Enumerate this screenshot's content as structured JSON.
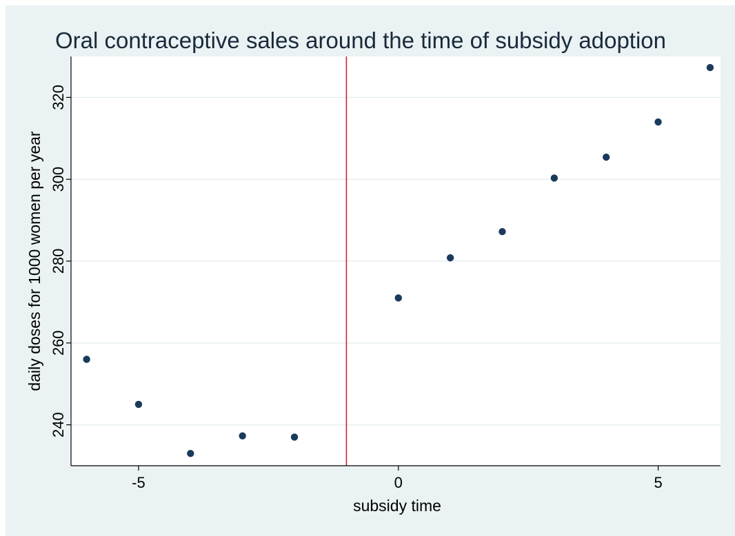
{
  "chart_data": {
    "type": "scatter",
    "title": "Oral contraceptive sales around the time of subsidy adoption",
    "xlabel": "subsidy time",
    "ylabel": "daily doses for 1000 women per year",
    "xlim": [
      -6.3,
      6.2
    ],
    "ylim": [
      230,
      330
    ],
    "xticks": [
      -5,
      0,
      5
    ],
    "yticks": [
      240,
      260,
      280,
      300,
      320
    ],
    "grid": true,
    "vline": {
      "x": -1,
      "color": "#c8283c"
    },
    "marker_color": "#1a3a5c",
    "points": [
      {
        "x": -6,
        "y": 256
      },
      {
        "x": -5,
        "y": 245
      },
      {
        "x": -4,
        "y": 233
      },
      {
        "x": -3,
        "y": 237.3
      },
      {
        "x": -2,
        "y": 237
      },
      {
        "x": 0,
        "y": 271
      },
      {
        "x": 1,
        "y": 280.8
      },
      {
        "x": 2,
        "y": 287.2
      },
      {
        "x": 3,
        "y": 300.3
      },
      {
        "x": 4,
        "y": 305.4
      },
      {
        "x": 5,
        "y": 314
      },
      {
        "x": 6,
        "y": 327.3
      }
    ]
  }
}
